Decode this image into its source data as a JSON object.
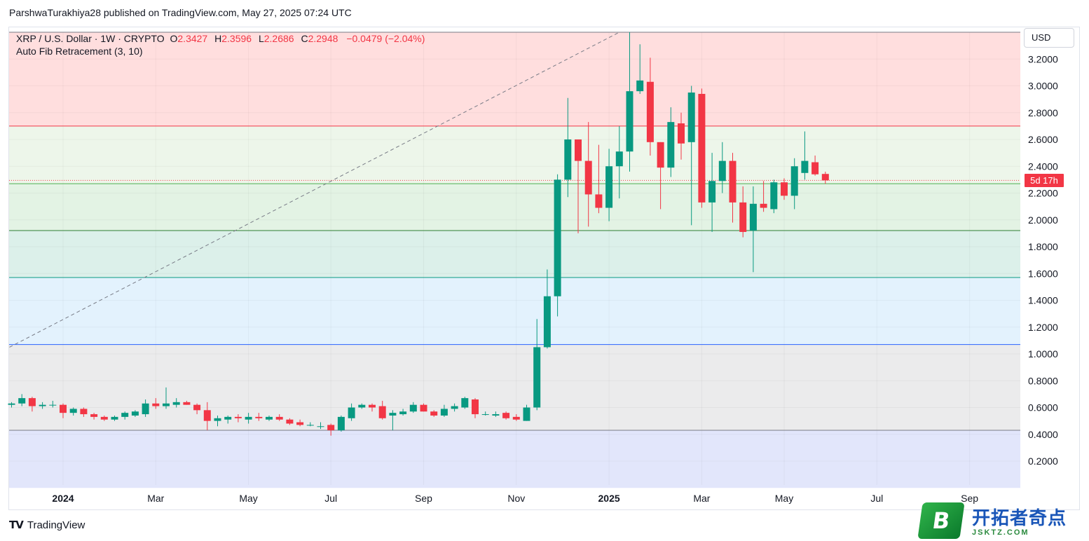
{
  "header": {
    "attribution": "ParshwaTurakhiya28 published on TradingView.com, May 27, 2025 07:24 UTC"
  },
  "legend": {
    "symbol": "XRP / U.S. Dollar · 1W · CRYPTO",
    "o_label": "O",
    "o_value": "2.3427",
    "h_label": "H",
    "h_value": "2.3596",
    "l_label": "L",
    "l_value": "2.2686",
    "c_label": "C",
    "c_value": "2.2948",
    "change": "−0.0479 (−2.04%)",
    "indicator": "Auto Fib Retracement (3, 10)"
  },
  "scale": {
    "currency": "USD",
    "countdown": "5d 17h"
  },
  "footer": {
    "brand": "TradingView",
    "watermark_cn": "开拓者奇点",
    "watermark_domain": "JSKTZ.COM",
    "watermark_letter": "B"
  },
  "colors": {
    "up": "#089981",
    "down": "#f23645"
  },
  "chart_data": {
    "type": "candlestick",
    "timeframe": "1W",
    "ylim": [
      0.0,
      3.4
    ],
    "y_ticks": [
      0.2,
      0.4,
      0.6,
      0.8,
      1.0,
      1.2,
      1.4,
      1.6,
      1.8,
      2.0,
      2.2,
      2.4,
      2.6,
      2.8,
      3.0,
      3.2
    ],
    "y_tick_labels": [
      "0.2000",
      "0.4000",
      "0.6000",
      "0.8000",
      "1.0000",
      "1.2000",
      "1.4000",
      "1.6000",
      "1.8000",
      "2.0000",
      "2.2000",
      "2.4000",
      "2.6000",
      "2.8000",
      "3.0000",
      "3.2000"
    ],
    "x_labels": [
      {
        "label": "2024",
        "bold": true,
        "index": 5
      },
      {
        "label": "Mar",
        "bold": false,
        "index": 14
      },
      {
        "label": "May",
        "bold": false,
        "index": 23
      },
      {
        "label": "Jul",
        "bold": false,
        "index": 31
      },
      {
        "label": "Sep",
        "bold": false,
        "index": 40
      },
      {
        "label": "Nov",
        "bold": false,
        "index": 49
      },
      {
        "label": "2025",
        "bold": true,
        "index": 58
      },
      {
        "label": "Mar",
        "bold": false,
        "index": 67
      },
      {
        "label": "May",
        "bold": false,
        "index": 75
      },
      {
        "label": "Jul",
        "bold": false,
        "index": 84
      },
      {
        "label": "Sep",
        "bold": false,
        "index": 93
      }
    ],
    "fib_levels": [
      3.4,
      2.7,
      2.27,
      1.92,
      1.57,
      1.07,
      0.43,
      0.0
    ],
    "fib_line_colors": [
      "#787b86",
      "#f23645",
      "#4caf50",
      "#2e7d32",
      "#089981",
      "#2962ff",
      "#787b86",
      "#787b86"
    ],
    "fib_fill_colors": [
      "#ffdede",
      "#edf6ea",
      "#e3f3e4",
      "#dcf0ea",
      "#e3f2fd",
      "#ebebec",
      "#e2e6fb"
    ],
    "trend_line": {
      "from": [
        0,
        1.05
      ],
      "to": [
        59,
        3.4
      ]
    },
    "current_price": 2.2948,
    "candles": [
      [
        0.62,
        0.64,
        0.6,
        0.63
      ],
      [
        0.63,
        0.7,
        0.61,
        0.67
      ],
      [
        0.67,
        0.68,
        0.57,
        0.61
      ],
      [
        0.61,
        0.64,
        0.59,
        0.62
      ],
      [
        0.62,
        0.65,
        0.6,
        0.62
      ],
      [
        0.62,
        0.63,
        0.52,
        0.56
      ],
      [
        0.56,
        0.6,
        0.54,
        0.59
      ],
      [
        0.59,
        0.6,
        0.53,
        0.55
      ],
      [
        0.55,
        0.56,
        0.51,
        0.53
      ],
      [
        0.53,
        0.54,
        0.5,
        0.51
      ],
      [
        0.51,
        0.54,
        0.5,
        0.53
      ],
      [
        0.53,
        0.57,
        0.51,
        0.56
      ],
      [
        0.54,
        0.58,
        0.53,
        0.57
      ],
      [
        0.55,
        0.66,
        0.53,
        0.63
      ],
      [
        0.63,
        0.67,
        0.59,
        0.61
      ],
      [
        0.61,
        0.75,
        0.59,
        0.63
      ],
      [
        0.62,
        0.67,
        0.6,
        0.64
      ],
      [
        0.64,
        0.65,
        0.62,
        0.62
      ],
      [
        0.62,
        0.63,
        0.55,
        0.58
      ],
      [
        0.58,
        0.64,
        0.43,
        0.5
      ],
      [
        0.5,
        0.54,
        0.46,
        0.52
      ],
      [
        0.51,
        0.54,
        0.48,
        0.53
      ],
      [
        0.53,
        0.55,
        0.49,
        0.52
      ],
      [
        0.51,
        0.56,
        0.48,
        0.53
      ],
      [
        0.53,
        0.56,
        0.5,
        0.52
      ],
      [
        0.51,
        0.54,
        0.5,
        0.53
      ],
      [
        0.53,
        0.55,
        0.5,
        0.51
      ],
      [
        0.51,
        0.52,
        0.47,
        0.48
      ],
      [
        0.49,
        0.51,
        0.46,
        0.47
      ],
      [
        0.47,
        0.49,
        0.46,
        0.47
      ],
      [
        0.46,
        0.49,
        0.44,
        0.46
      ],
      [
        0.47,
        0.48,
        0.39,
        0.43
      ],
      [
        0.43,
        0.54,
        0.42,
        0.53
      ],
      [
        0.52,
        0.63,
        0.5,
        0.6
      ],
      [
        0.6,
        0.63,
        0.59,
        0.62
      ],
      [
        0.62,
        0.63,
        0.57,
        0.6
      ],
      [
        0.61,
        0.65,
        0.51,
        0.52
      ],
      [
        0.54,
        0.58,
        0.43,
        0.56
      ],
      [
        0.55,
        0.59,
        0.54,
        0.57
      ],
      [
        0.57,
        0.64,
        0.56,
        0.62
      ],
      [
        0.62,
        0.63,
        0.57,
        0.57
      ],
      [
        0.57,
        0.58,
        0.53,
        0.54
      ],
      [
        0.54,
        0.62,
        0.53,
        0.59
      ],
      [
        0.59,
        0.63,
        0.57,
        0.61
      ],
      [
        0.6,
        0.68,
        0.59,
        0.67
      ],
      [
        0.66,
        0.67,
        0.52,
        0.55
      ],
      [
        0.55,
        0.57,
        0.54,
        0.55
      ],
      [
        0.54,
        0.57,
        0.53,
        0.55
      ],
      [
        0.56,
        0.57,
        0.51,
        0.52
      ],
      [
        0.53,
        0.55,
        0.5,
        0.51
      ],
      [
        0.5,
        0.62,
        0.5,
        0.6
      ],
      [
        0.6,
        1.26,
        0.58,
        1.05
      ],
      [
        1.05,
        1.63,
        1.04,
        1.43
      ],
      [
        1.43,
        2.34,
        1.28,
        2.3
      ],
      [
        2.3,
        2.91,
        2.17,
        2.6
      ],
      [
        2.6,
        2.6,
        1.9,
        2.44
      ],
      [
        2.44,
        2.73,
        1.95,
        2.19
      ],
      [
        2.19,
        2.56,
        2.05,
        2.09
      ],
      [
        2.09,
        2.53,
        1.99,
        2.4
      ],
      [
        2.4,
        2.7,
        2.16,
        2.51
      ],
      [
        2.51,
        3.4,
        2.36,
        2.96
      ],
      [
        2.96,
        3.31,
        2.94,
        3.04
      ],
      [
        3.03,
        3.21,
        2.48,
        2.58
      ],
      [
        2.58,
        2.58,
        2.08,
        2.39
      ],
      [
        2.39,
        2.84,
        2.32,
        2.73
      ],
      [
        2.72,
        2.8,
        2.45,
        2.57
      ],
      [
        2.58,
        3.0,
        1.96,
        2.95
      ],
      [
        2.94,
        2.98,
        2.09,
        2.13
      ],
      [
        2.13,
        2.5,
        1.91,
        2.29
      ],
      [
        2.29,
        2.58,
        2.2,
        2.44
      ],
      [
        2.44,
        2.5,
        1.98,
        2.13
      ],
      [
        2.13,
        2.25,
        1.87,
        1.91
      ],
      [
        1.92,
        2.25,
        1.61,
        2.12
      ],
      [
        2.12,
        2.29,
        2.06,
        2.09
      ],
      [
        2.08,
        2.3,
        2.05,
        2.28
      ],
      [
        2.28,
        2.31,
        2.15,
        2.18
      ],
      [
        2.18,
        2.46,
        2.08,
        2.4
      ],
      [
        2.35,
        2.66,
        2.3,
        2.44
      ],
      [
        2.43,
        2.48,
        2.33,
        2.34
      ],
      [
        2.3427,
        2.3596,
        2.2686,
        2.2948
      ]
    ]
  }
}
